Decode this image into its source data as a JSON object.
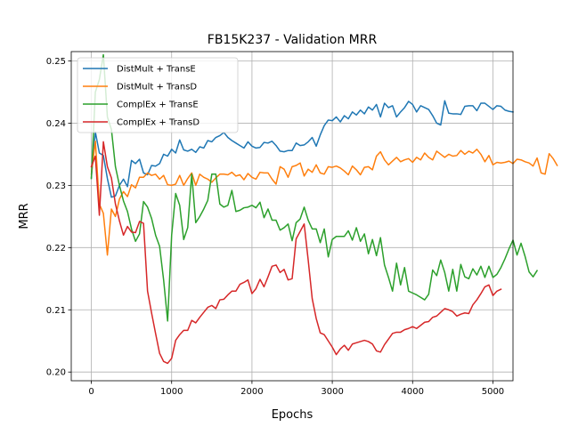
{
  "chart_data": {
    "type": "line",
    "title": "FB15K237 - Validation MRR",
    "xlabel": "Epochs",
    "ylabel": "MRR",
    "xlim": [
      -250,
      5250
    ],
    "ylim": [
      0.1986,
      0.2515
    ],
    "xticks": [
      0,
      1000,
      2000,
      3000,
      4000,
      5000
    ],
    "yticks": [
      0.2,
      0.21,
      0.22,
      0.23,
      0.24,
      0.25
    ],
    "xtick_labels": [
      "0",
      "1000",
      "2000",
      "3000",
      "4000",
      "5000"
    ],
    "ytick_labels": [
      "0.20",
      "0.21",
      "0.22",
      "0.23",
      "0.24",
      "0.25"
    ],
    "grid": true,
    "legend_position": "top-left",
    "x_step": 50,
    "series": [
      {
        "name": "DistMult + TransE",
        "color": "#1f77b4",
        "values": [
          0.2312,
          0.2386,
          0.2352,
          0.2348,
          0.2311,
          0.2281,
          0.2283,
          0.23,
          0.231,
          0.2298,
          0.234,
          0.2335,
          0.2342,
          0.232,
          0.2317,
          0.2332,
          0.2331,
          0.2335,
          0.235,
          0.2347,
          0.2358,
          0.2352,
          0.2373,
          0.2357,
          0.2355,
          0.2358,
          0.2353,
          0.2362,
          0.236,
          0.2372,
          0.237,
          0.2377,
          0.238,
          0.2385,
          0.2377,
          0.2372,
          0.2368,
          0.2364,
          0.236,
          0.237,
          0.2363,
          0.236,
          0.2361,
          0.2369,
          0.2368,
          0.2371,
          0.2364,
          0.2355,
          0.2354,
          0.2356,
          0.2356,
          0.2368,
          0.2364,
          0.2365,
          0.237,
          0.2377,
          0.2363,
          0.2381,
          0.2396,
          0.2405,
          0.2404,
          0.241,
          0.2402,
          0.2412,
          0.2407,
          0.2418,
          0.2413,
          0.2421,
          0.2415,
          0.2426,
          0.2421,
          0.243,
          0.241,
          0.2432,
          0.2425,
          0.2428,
          0.241,
          0.2418,
          0.2425,
          0.2435,
          0.243,
          0.2418,
          0.2428,
          0.2425,
          0.2422,
          0.2412,
          0.24,
          0.2397,
          0.2436,
          0.2416,
          0.2415,
          0.2415,
          0.2414,
          0.2427,
          0.2428,
          0.2428,
          0.242,
          0.2432,
          0.2432,
          0.2427,
          0.2422,
          0.2428,
          0.2427,
          0.2421,
          0.2419,
          0.2418
        ]
      },
      {
        "name": "DistMult + TransD",
        "color": "#ff7f0e",
        "values": [
          0.2318,
          0.2371,
          0.227,
          0.2255,
          0.2188,
          0.2262,
          0.225,
          0.2278,
          0.229,
          0.2282,
          0.2301,
          0.2296,
          0.2313,
          0.2313,
          0.232,
          0.2316,
          0.2318,
          0.231,
          0.2316,
          0.2301,
          0.23,
          0.2302,
          0.2316,
          0.23,
          0.2311,
          0.232,
          0.23,
          0.2318,
          0.2313,
          0.231,
          0.2305,
          0.2312,
          0.2318,
          0.2318,
          0.2317,
          0.2321,
          0.2315,
          0.2317,
          0.2309,
          0.2319,
          0.2313,
          0.231,
          0.2321,
          0.232,
          0.232,
          0.231,
          0.2302,
          0.233,
          0.2326,
          0.2313,
          0.233,
          0.2332,
          0.2336,
          0.2315,
          0.2326,
          0.2321,
          0.2333,
          0.232,
          0.2318,
          0.233,
          0.2329,
          0.2331,
          0.2328,
          0.2323,
          0.2317,
          0.2331,
          0.2325,
          0.2317,
          0.2329,
          0.233,
          0.2325,
          0.2347,
          0.2354,
          0.2341,
          0.2333,
          0.2339,
          0.2345,
          0.2338,
          0.2341,
          0.2343,
          0.2337,
          0.2345,
          0.2341,
          0.2352,
          0.2345,
          0.2341,
          0.2355,
          0.235,
          0.2345,
          0.235,
          0.2347,
          0.2348,
          0.2356,
          0.235,
          0.2355,
          0.2352,
          0.2358,
          0.235,
          0.2338,
          0.2348,
          0.2333,
          0.2337,
          0.2336,
          0.2337,
          0.2339,
          0.2335,
          0.2342,
          0.2341,
          0.2338,
          0.2336,
          0.2331,
          0.2344,
          0.232,
          0.2318,
          0.2351,
          0.2343,
          0.2332
        ]
      },
      {
        "name": "ComplEx + TransE",
        "color": "#2ca02c",
        "values": [
          0.2311,
          0.245,
          0.247,
          0.251,
          0.241,
          0.239,
          0.233,
          0.23,
          0.2275,
          0.2258,
          0.223,
          0.221,
          0.2222,
          0.2274,
          0.2265,
          0.2247,
          0.222,
          0.2202,
          0.2148,
          0.2082,
          0.222,
          0.2287,
          0.2268,
          0.2213,
          0.2232,
          0.2318,
          0.224,
          0.225,
          0.2262,
          0.2276,
          0.2318,
          0.2318,
          0.227,
          0.2265,
          0.2268,
          0.2292,
          0.2258,
          0.226,
          0.2264,
          0.2265,
          0.2268,
          0.2264,
          0.2273,
          0.2248,
          0.2262,
          0.2244,
          0.2244,
          0.2228,
          0.2232,
          0.2238,
          0.2211,
          0.224,
          0.2246,
          0.2265,
          0.2244,
          0.223,
          0.223,
          0.2208,
          0.223,
          0.2185,
          0.2213,
          0.2218,
          0.2218,
          0.2218,
          0.2227,
          0.2212,
          0.2232,
          0.221,
          0.2222,
          0.219,
          0.2213,
          0.2187,
          0.2216,
          0.2172,
          0.2152,
          0.213,
          0.2175,
          0.214,
          0.2168,
          0.213,
          0.2127,
          0.2124,
          0.212,
          0.2116,
          0.2125,
          0.2164,
          0.2155,
          0.218,
          0.216,
          0.213,
          0.2165,
          0.213,
          0.2173,
          0.2153,
          0.215,
          0.2166,
          0.2156,
          0.217,
          0.2152,
          0.217,
          0.2152,
          0.2157,
          0.2168,
          0.2182,
          0.2198,
          0.2212,
          0.2188,
          0.2207,
          0.2186,
          0.2161,
          0.2153,
          0.2163
        ]
      },
      {
        "name": "ComplEx + TransD",
        "color": "#d62728",
        "values": [
          0.233,
          0.2347,
          0.2252,
          0.237,
          0.233,
          0.2312,
          0.227,
          0.2243,
          0.222,
          0.2234,
          0.2225,
          0.2224,
          0.2242,
          0.2239,
          0.213,
          0.2095,
          0.2062,
          0.203,
          0.2017,
          0.2014,
          0.2022,
          0.2051,
          0.206,
          0.2067,
          0.2067,
          0.2083,
          0.2079,
          0.2088,
          0.2096,
          0.2104,
          0.2107,
          0.2102,
          0.2116,
          0.2117,
          0.2124,
          0.213,
          0.213,
          0.2141,
          0.2144,
          0.2148,
          0.2126,
          0.2134,
          0.2149,
          0.2137,
          0.2153,
          0.217,
          0.2172,
          0.216,
          0.2165,
          0.2148,
          0.215,
          0.2214,
          0.2226,
          0.2238,
          0.218,
          0.2118,
          0.2086,
          0.2063,
          0.206,
          0.205,
          0.204,
          0.2028,
          0.2037,
          0.2043,
          0.2035,
          0.2045,
          0.2047,
          0.2049,
          0.2051,
          0.2049,
          0.2045,
          0.2034,
          0.2032,
          0.2044,
          0.2053,
          0.2062,
          0.2064,
          0.2064,
          0.2068,
          0.207,
          0.2073,
          0.207,
          0.2075,
          0.208,
          0.2081,
          0.2088,
          0.209,
          0.2096,
          0.2102,
          0.21,
          0.2097,
          0.209,
          0.2093,
          0.2095,
          0.2094,
          0.2108,
          0.2116,
          0.2126,
          0.2137,
          0.214,
          0.2123,
          0.213,
          0.2133
        ]
      }
    ]
  }
}
